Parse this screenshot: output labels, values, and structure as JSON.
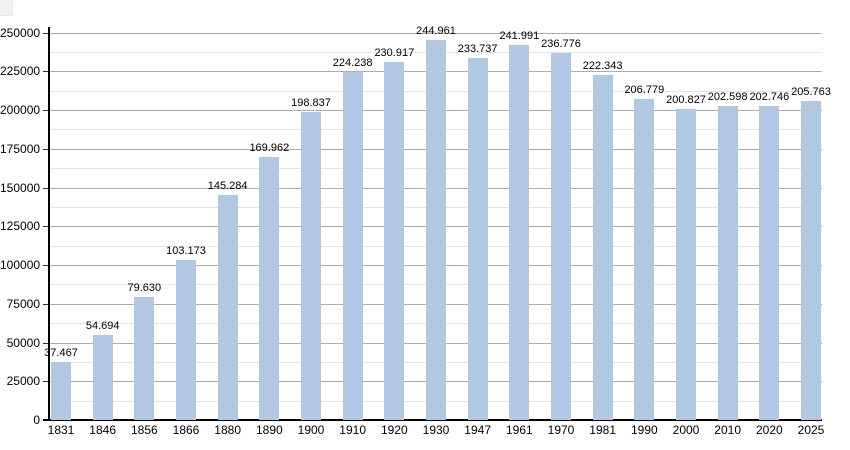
{
  "chart_data": {
    "type": "bar",
    "title": "",
    "categories": [
      "1831",
      "1846",
      "1856",
      "1866",
      "1880",
      "1890",
      "1900",
      "1910",
      "1920",
      "1930",
      "1947",
      "1961",
      "1970",
      "1981",
      "1990",
      "2000",
      "2010",
      "2020",
      "2025"
    ],
    "values": [
      37467,
      54694,
      79630,
      103173,
      145284,
      169962,
      198837,
      224238,
      230917,
      244961,
      233737,
      241991,
      236776,
      222343,
      206779,
      200827,
      202598,
      202746,
      205763
    ],
    "value_labels": [
      "37.467",
      "54.694",
      "79.630",
      "103.173",
      "145.284",
      "169.962",
      "198.837",
      "224.238",
      "230.917",
      "244.961",
      "233.737",
      "241.991",
      "236.776",
      "222.343",
      "206.779",
      "200.827",
      "202.598",
      "202.746",
      "205.763"
    ],
    "xlabel": "",
    "ylabel": "",
    "ylim": [
      0,
      250000
    ],
    "y_major_step": 25000,
    "y_minor_step": 12500,
    "y_tick_labels": [
      "0",
      "25000",
      "50000",
      "75000",
      "100000",
      "125000",
      "150000",
      "175000",
      "200000",
      "225000",
      "250000"
    ],
    "grid": "horizontal, major and minor lines",
    "legend": "none",
    "colors": {
      "bar": "#b2c8e2",
      "major_grid": "#adadad",
      "minor_grid": "#e4e4e4",
      "axis": "#000000",
      "text": "#000000"
    }
  }
}
